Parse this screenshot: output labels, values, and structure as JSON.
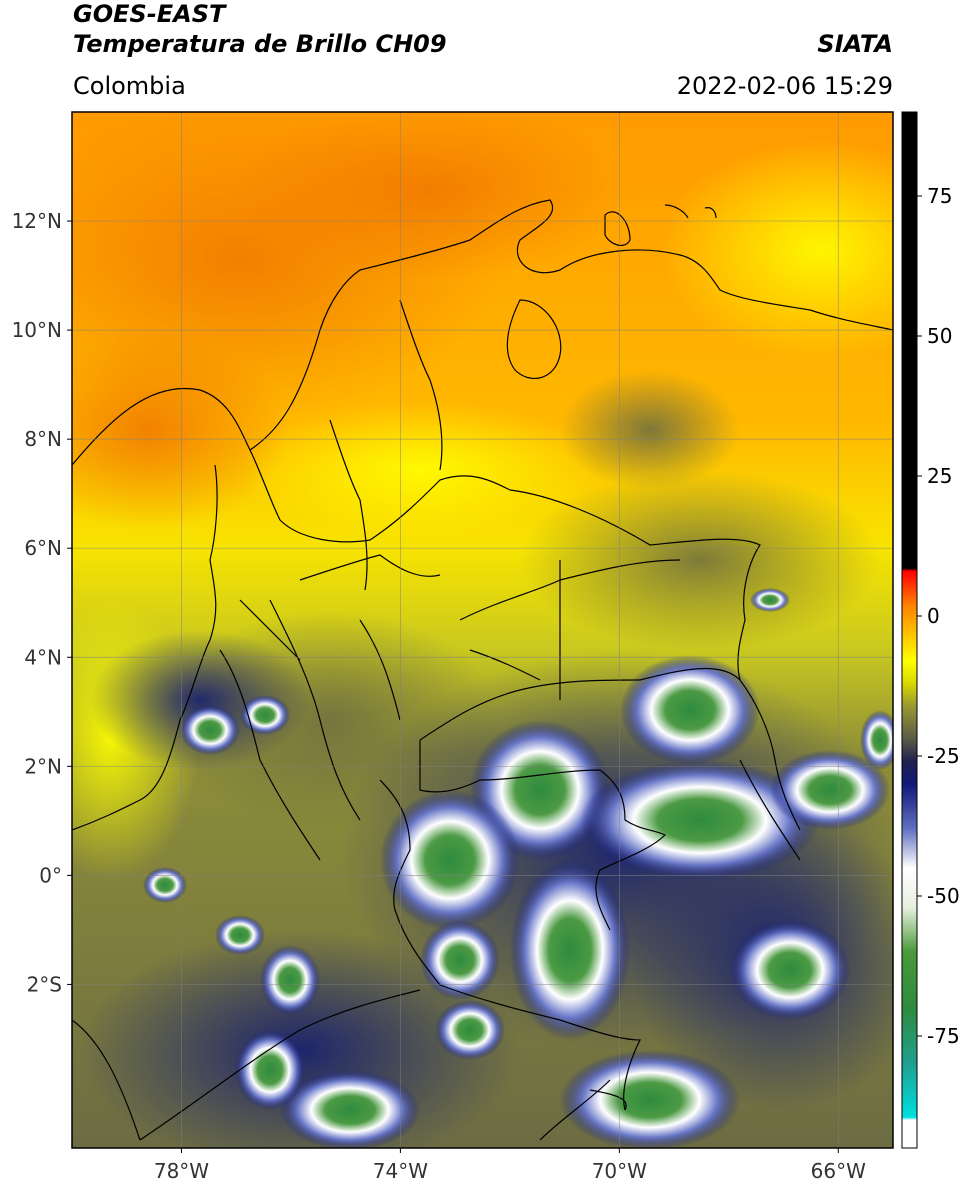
{
  "header": {
    "satellite": "GOES-EAST",
    "product": "Temperatura de Brillo CH09",
    "region": "Colombia",
    "organization": "SIATA",
    "datetime": "2022-02-06 15:29"
  },
  "map": {
    "lon_range": [
      -80,
      -65
    ],
    "lat_range": [
      -5,
      14
    ],
    "lon_ticks": [
      {
        "value": -78,
        "label": "78°W"
      },
      {
        "value": -74,
        "label": "74°W"
      },
      {
        "value": -70,
        "label": "70°W"
      },
      {
        "value": -66,
        "label": "66°W"
      }
    ],
    "lat_ticks": [
      {
        "value": 12,
        "label": "12°N"
      },
      {
        "value": 10,
        "label": "10°N"
      },
      {
        "value": 8,
        "label": "8°N"
      },
      {
        "value": 6,
        "label": "6°N"
      },
      {
        "value": 4,
        "label": "4°N"
      },
      {
        "value": 2,
        "label": "2°N"
      },
      {
        "value": 0,
        "label": "0°"
      },
      {
        "value": -2,
        "label": "2°S"
      }
    ],
    "grid": true
  },
  "colorbar": {
    "range": [
      -95,
      90
    ],
    "ticks": [
      {
        "value": 75,
        "label": "75"
      },
      {
        "value": 50,
        "label": "50"
      },
      {
        "value": 25,
        "label": "25"
      },
      {
        "value": 0,
        "label": "0"
      },
      {
        "value": -25,
        "label": "-25"
      },
      {
        "value": -50,
        "label": "-50"
      },
      {
        "value": -75,
        "label": "-75"
      }
    ],
    "stops": [
      {
        "value": -95,
        "color": "#ffffff"
      },
      {
        "value": -90,
        "color": "#ffffff"
      },
      {
        "value": -89.5,
        "color": "#00e0e0"
      },
      {
        "value": -80,
        "color": "#20a090"
      },
      {
        "value": -70,
        "color": "#2e8b3e"
      },
      {
        "value": -60,
        "color": "#4a9a3a"
      },
      {
        "value": -52,
        "color": "#e8f0e0"
      },
      {
        "value": -45,
        "color": "#ffffff"
      },
      {
        "value": -38,
        "color": "#6070c0"
      },
      {
        "value": -30,
        "color": "#101878"
      },
      {
        "value": -26,
        "color": "#202050"
      },
      {
        "value": -22,
        "color": "#5a5a48"
      },
      {
        "value": -16,
        "color": "#9a9a30"
      },
      {
        "value": -12,
        "color": "#d8d800"
      },
      {
        "value": -8,
        "color": "#ffff00"
      },
      {
        "value": -3,
        "color": "#ffc000"
      },
      {
        "value": 2,
        "color": "#ff8000"
      },
      {
        "value": 8,
        "color": "#ff0000"
      },
      {
        "value": 8.5,
        "color": "#000000"
      },
      {
        "value": 90,
        "color": "#000000"
      }
    ]
  }
}
